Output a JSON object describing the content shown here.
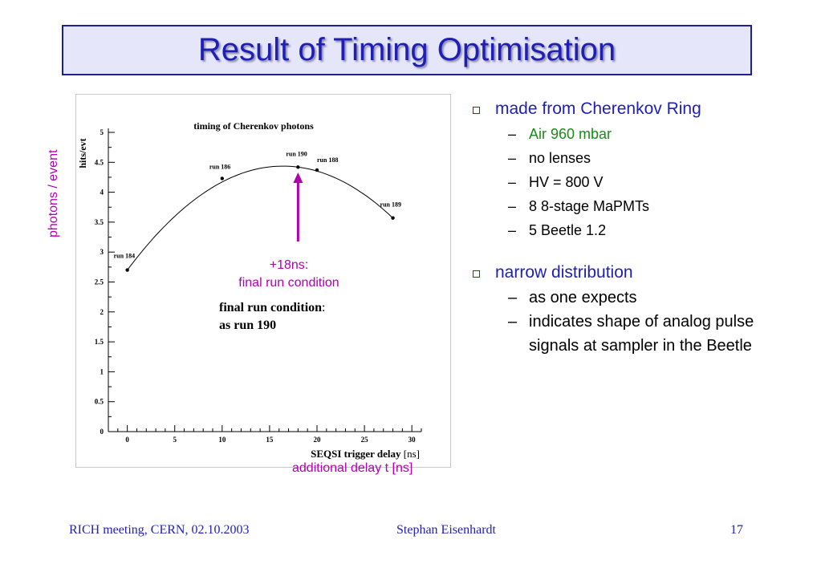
{
  "slide": {
    "title": "Result of Timing Optimisation",
    "annotations": {
      "y_axis_note": "photons / event",
      "arrow_note_line1": "+18ns:",
      "arrow_note_line2": "final run condition",
      "x_axis_note": "additional delay t [ns]",
      "final_line1": "final run condition",
      "final_colon": ":",
      "final_line2": "as run 190"
    },
    "bullets": [
      {
        "text": "made from Cherenkov Ring",
        "sub": [
          "Air 960 mbar",
          "no lenses",
          "HV = 800 V",
          "8 8-stage MaPMTs",
          "5 Beetle 1.2"
        ]
      },
      {
        "text": "narrow distribution",
        "sub": [
          "as one expects",
          "indicates shape of analog pulse signals at sampler in the Beetle"
        ]
      }
    ],
    "footer": {
      "left": "RICH meeting, CERN, 02.10.2003",
      "center": "Stephan Eisenhardt",
      "right": "17"
    },
    "colors": {
      "title": "#1f1fb4",
      "annotation": "#b000b0",
      "subbullet_green": "#1a8a1a",
      "bullet_box": "#a01010"
    }
  },
  "chart_data": {
    "type": "scatter",
    "title": "timing of Cherenkov photons",
    "xlabel": "SEQSI trigger delay",
    "xlabel_unit": "[ns]",
    "ylabel": "hits/evt",
    "xlim": [
      -2,
      31
    ],
    "ylim": [
      0,
      5
    ],
    "xticks": [
      "0",
      "5",
      "10",
      "15",
      "20",
      "25",
      "30"
    ],
    "yticks": [
      "0",
      "0.5",
      "1",
      "1.5",
      "2",
      "2.5",
      "3",
      "3.5",
      "4",
      "4.5",
      "5"
    ],
    "points": [
      {
        "x": 0,
        "y": 2.7,
        "label": "run 184"
      },
      {
        "x": 10,
        "y": 4.23,
        "label": "run 186"
      },
      {
        "x": 18,
        "y": 4.42,
        "label": "run 190"
      },
      {
        "x": 20,
        "y": 4.37,
        "label": "run 188"
      },
      {
        "x": 28,
        "y": 3.57,
        "label": "run 189"
      }
    ],
    "fit_curve": true,
    "grid": false
  }
}
